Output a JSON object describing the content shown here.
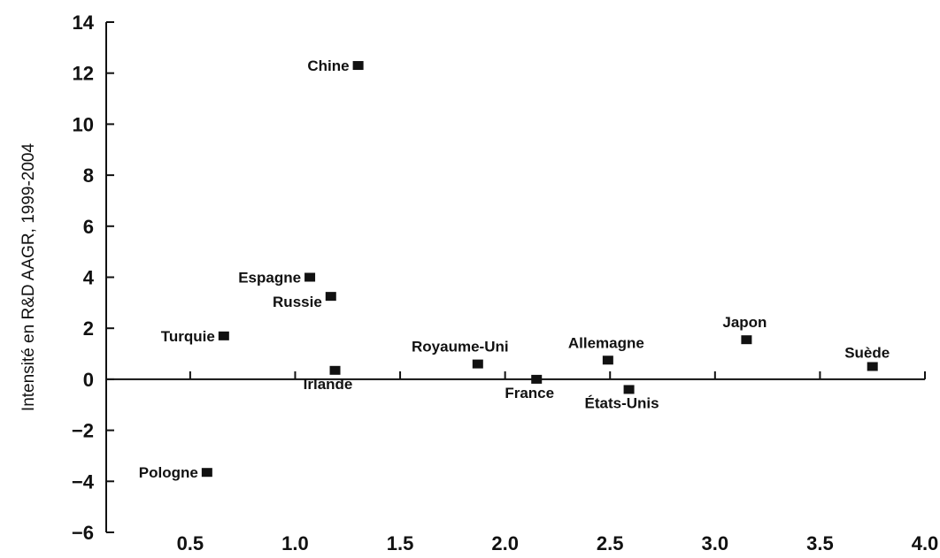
{
  "chart_data": {
    "type": "scatter",
    "title": "",
    "xlabel": "",
    "ylabel": "Intensité en R&D AAGR, 1999-2004",
    "xlim": [
      0.1,
      4.0
    ],
    "ylim": [
      -6,
      14
    ],
    "x_ticks": [
      0.5,
      1.0,
      1.5,
      2.0,
      2.5,
      3.0,
      3.5,
      4.0
    ],
    "x_tick_labels": [
      "0.5",
      "1.0",
      "1.5",
      "2.0",
      "2.5",
      "3.0",
      "3.5",
      "4.0"
    ],
    "y_ticks": [
      14,
      12,
      10,
      8,
      6,
      4,
      2,
      0,
      -2,
      -4,
      -6
    ],
    "y_tick_labels": [
      "14",
      "12",
      "10",
      "8",
      "6",
      "4",
      "2",
      "0",
      "−2",
      "−4",
      "−6"
    ],
    "grid": false,
    "marker_color": "#111111",
    "points": [
      {
        "label": "Chine",
        "x": 1.3,
        "y": 12.3,
        "label_pos": "left"
      },
      {
        "label": "Espagne",
        "x": 1.07,
        "y": 4.0,
        "label_pos": "left"
      },
      {
        "label": "Russie",
        "x": 1.17,
        "y": 3.25,
        "label_pos": "left-below"
      },
      {
        "label": "Turquie",
        "x": 0.66,
        "y": 1.7,
        "label_pos": "left"
      },
      {
        "label": "Irlande",
        "x": 1.19,
        "y": 0.35,
        "label_pos": "below"
      },
      {
        "label": "Royaume-Uni",
        "x": 1.87,
        "y": 0.6,
        "label_pos": "above-left"
      },
      {
        "label": "France",
        "x": 2.15,
        "y": 0.0,
        "label_pos": "below"
      },
      {
        "label": "Allemagne",
        "x": 2.49,
        "y": 0.75,
        "label_pos": "above"
      },
      {
        "label": "États-Unis",
        "x": 2.59,
        "y": -0.4,
        "label_pos": "below"
      },
      {
        "label": "Japon",
        "x": 3.15,
        "y": 1.55,
        "label_pos": "above"
      },
      {
        "label": "Suède",
        "x": 3.75,
        "y": 0.5,
        "label_pos": "above-right"
      },
      {
        "label": "Pologne",
        "x": 0.58,
        "y": -3.65,
        "label_pos": "left"
      }
    ]
  }
}
